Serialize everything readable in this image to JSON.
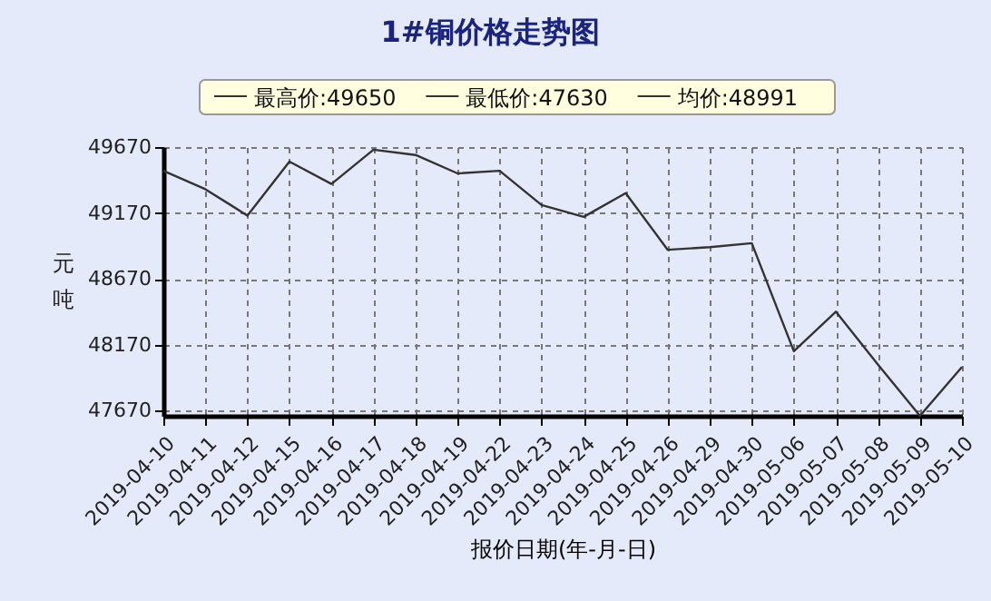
{
  "chart_data": {
    "type": "line",
    "title": "1#铜价格走势图",
    "xlabel": "报价日期(年-月-日)",
    "ylabel": "元吨",
    "categories": [
      "2019-04-10",
      "2019-04-11",
      "2019-04-12",
      "2019-04-15",
      "2019-04-16",
      "2019-04-17",
      "2019-04-18",
      "2019-04-19",
      "2019-04-22",
      "2019-04-23",
      "2019-04-24",
      "2019-04-25",
      "2019-04-26",
      "2019-04-29",
      "2019-04-30",
      "2019-05-06",
      "2019-05-07",
      "2019-05-08",
      "2019-05-09",
      "2019-05-10"
    ],
    "series": [
      {
        "color": "#333333",
        "values": [
          49490,
          49350,
          49150,
          49560,
          49390,
          49650,
          49610,
          49470,
          49490,
          49230,
          49140,
          49320,
          48890,
          48910,
          48940,
          48120,
          48420,
          48020,
          47630,
          48000
        ]
      }
    ],
    "ylim": [
      47630,
      49670
    ],
    "yticks": [
      47670,
      48170,
      48670,
      49170,
      49670
    ],
    "grid": true,
    "marker": "none",
    "line_style": "solid",
    "annotations": [
      "最高价:49650",
      "最低价:47630",
      "均价:48991"
    ]
  }
}
